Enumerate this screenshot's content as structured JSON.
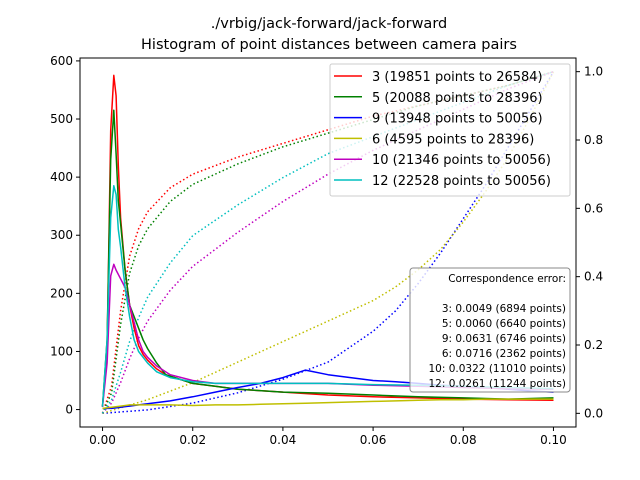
{
  "chart_data": {
    "type": "line",
    "title": "./vrbig/jack-forward/jack-forward",
    "subtitle": "Histogram of point distances between camera pairs",
    "xlabel": "",
    "ylabel": "",
    "xlim": [
      -0.005,
      0.105
    ],
    "ylim": [
      -30,
      605
    ],
    "y2lim": [
      -0.04,
      1.04
    ],
    "x_ticks": [
      0.0,
      0.02,
      0.04,
      0.06,
      0.08,
      0.1
    ],
    "x_tick_labels": [
      "0.00",
      "0.02",
      "0.04",
      "0.06",
      "0.08",
      "0.10"
    ],
    "y_ticks": [
      0,
      100,
      200,
      300,
      400,
      500,
      600
    ],
    "y_tick_labels": [
      "0",
      "100",
      "200",
      "300",
      "400",
      "500",
      "600"
    ],
    "y2_ticks": [
      0.0,
      0.2,
      0.4,
      0.6,
      0.8,
      1.0
    ],
    "y2_tick_labels": [
      "0.0",
      "0.2",
      "0.4",
      "0.6",
      "0.8",
      "1.0"
    ],
    "grid": false,
    "legend_position": "top-right",
    "series": [
      {
        "name": "3 (19851 points to 26584)",
        "color": "#ff0000",
        "x": [
          0.0,
          0.001,
          0.0018,
          0.0025,
          0.003,
          0.0035,
          0.004,
          0.005,
          0.006,
          0.007,
          0.008,
          0.009,
          0.01,
          0.012,
          0.014,
          0.016,
          0.02,
          0.025,
          0.03,
          0.04,
          0.05,
          0.06,
          0.07,
          0.08,
          0.09,
          0.1
        ],
        "values": [
          5,
          100,
          480,
          575,
          540,
          420,
          330,
          240,
          180,
          140,
          110,
          95,
          85,
          70,
          60,
          55,
          45,
          40,
          35,
          30,
          25,
          22,
          20,
          18,
          17,
          16
        ]
      },
      {
        "name": "5 (20088 points to 28396)",
        "color": "#008000",
        "x": [
          0.0,
          0.001,
          0.0018,
          0.0025,
          0.003,
          0.0035,
          0.004,
          0.005,
          0.006,
          0.007,
          0.008,
          0.009,
          0.01,
          0.012,
          0.014,
          0.016,
          0.02,
          0.025,
          0.03,
          0.04,
          0.05,
          0.06,
          0.07,
          0.08,
          0.09,
          0.1
        ],
        "values": [
          5,
          120,
          430,
          515,
          440,
          360,
          320,
          240,
          180,
          160,
          140,
          120,
          105,
          80,
          60,
          55,
          45,
          40,
          35,
          30,
          28,
          25,
          22,
          20,
          18,
          20
        ]
      },
      {
        "name": "9 (13948 points to 50056)",
        "color": "#0000ff",
        "x": [
          0.0,
          0.002,
          0.004,
          0.006,
          0.008,
          0.01,
          0.015,
          0.02,
          0.025,
          0.03,
          0.035,
          0.04,
          0.045,
          0.05,
          0.055,
          0.06,
          0.065,
          0.07,
          0.075,
          0.08,
          0.085,
          0.09,
          0.095,
          0.1
        ],
        "values": [
          2,
          2,
          4,
          6,
          8,
          10,
          15,
          22,
          30,
          38,
          45,
          55,
          68,
          60,
          55,
          50,
          48,
          45,
          42,
          40,
          38,
          35,
          32,
          30
        ]
      },
      {
        "name": "6 (4595 points to 28396)",
        "color": "#bfbf00",
        "x": [
          0.0,
          0.002,
          0.004,
          0.006,
          0.008,
          0.01,
          0.015,
          0.02,
          0.025,
          0.03,
          0.035,
          0.04,
          0.045,
          0.05,
          0.055,
          0.06,
          0.065,
          0.07,
          0.075,
          0.08,
          0.085,
          0.09,
          0.095,
          0.1
        ],
        "values": [
          2,
          4,
          6,
          8,
          8,
          8,
          8,
          7,
          8,
          8,
          9,
          10,
          11,
          12,
          13,
          14,
          15,
          16,
          17,
          17,
          18,
          18,
          18,
          18
        ]
      },
      {
        "name": "10 (21346 points to 50056)",
        "color": "#bf00bf",
        "x": [
          0.0,
          0.001,
          0.0018,
          0.0025,
          0.003,
          0.004,
          0.005,
          0.006,
          0.007,
          0.008,
          0.009,
          0.01,
          0.012,
          0.015,
          0.02,
          0.025,
          0.03,
          0.04,
          0.05,
          0.06,
          0.07,
          0.08,
          0.09,
          0.1
        ],
        "values": [
          5,
          80,
          230,
          250,
          240,
          225,
          210,
          180,
          150,
          120,
          100,
          90,
          75,
          60,
          50,
          45,
          45,
          45,
          45,
          42,
          40,
          38,
          36,
          35
        ]
      },
      {
        "name": "12 (22528 points to 50056)",
        "color": "#00bfbf",
        "x": [
          0.0,
          0.001,
          0.0018,
          0.0025,
          0.003,
          0.0035,
          0.004,
          0.005,
          0.006,
          0.007,
          0.008,
          0.009,
          0.01,
          0.012,
          0.015,
          0.02,
          0.025,
          0.03,
          0.04,
          0.05,
          0.06,
          0.07,
          0.08,
          0.09,
          0.1
        ],
        "values": [
          5,
          120,
          330,
          385,
          370,
          310,
          280,
          210,
          160,
          120,
          100,
          90,
          80,
          65,
          55,
          48,
          45,
          45,
          45,
          45,
          43,
          42,
          40,
          38,
          36
        ]
      }
    ],
    "cumulative_series": [
      {
        "color": "#ff0000",
        "x": [
          0.0,
          0.002,
          0.004,
          0.006,
          0.008,
          0.01,
          0.015,
          0.02,
          0.03,
          0.04,
          0.05,
          0.06,
          0.07,
          0.08,
          0.09,
          0.1
        ],
        "values": [
          0.0,
          0.08,
          0.3,
          0.46,
          0.54,
          0.59,
          0.66,
          0.7,
          0.75,
          0.79,
          0.83,
          0.87,
          0.9,
          0.93,
          0.96,
          1.0
        ]
      },
      {
        "color": "#008000",
        "x": [
          0.0,
          0.002,
          0.004,
          0.006,
          0.008,
          0.01,
          0.015,
          0.02,
          0.03,
          0.04,
          0.05,
          0.06,
          0.07,
          0.08,
          0.09,
          0.1
        ],
        "values": [
          0.0,
          0.06,
          0.26,
          0.41,
          0.49,
          0.54,
          0.62,
          0.67,
          0.73,
          0.78,
          0.82,
          0.86,
          0.9,
          0.93,
          0.96,
          1.0
        ]
      },
      {
        "color": "#0000ff",
        "x": [
          0.0,
          0.01,
          0.02,
          0.03,
          0.04,
          0.05,
          0.06,
          0.065,
          0.07,
          0.075,
          0.08,
          0.085,
          0.09,
          0.095,
          0.1
        ],
        "values": [
          0.0,
          0.01,
          0.03,
          0.06,
          0.1,
          0.15,
          0.24,
          0.3,
          0.38,
          0.47,
          0.57,
          0.67,
          0.78,
          0.89,
          1.0
        ]
      },
      {
        "color": "#bfbf00",
        "x": [
          0.0,
          0.01,
          0.02,
          0.03,
          0.04,
          0.05,
          0.06,
          0.065,
          0.07,
          0.075,
          0.08,
          0.085,
          0.09,
          0.095,
          0.1
        ],
        "values": [
          0.0,
          0.04,
          0.09,
          0.15,
          0.21,
          0.27,
          0.33,
          0.37,
          0.42,
          0.48,
          0.56,
          0.65,
          0.75,
          0.87,
          1.0
        ]
      },
      {
        "color": "#bf00bf",
        "x": [
          0.0,
          0.002,
          0.004,
          0.006,
          0.008,
          0.01,
          0.015,
          0.02,
          0.03,
          0.04,
          0.05,
          0.06,
          0.07,
          0.08,
          0.09,
          0.1
        ],
        "values": [
          0.0,
          0.03,
          0.09,
          0.16,
          0.22,
          0.27,
          0.36,
          0.43,
          0.53,
          0.62,
          0.7,
          0.77,
          0.83,
          0.89,
          0.95,
          1.0
        ]
      },
      {
        "color": "#00bfbf",
        "x": [
          0.0,
          0.002,
          0.004,
          0.006,
          0.008,
          0.01,
          0.015,
          0.02,
          0.03,
          0.04,
          0.05,
          0.06,
          0.07,
          0.08,
          0.09,
          0.1
        ],
        "values": [
          0.0,
          0.04,
          0.12,
          0.21,
          0.28,
          0.34,
          0.44,
          0.52,
          0.61,
          0.69,
          0.76,
          0.81,
          0.86,
          0.91,
          0.96,
          1.0
        ]
      }
    ],
    "annotation": {
      "title": "Correspondence error:",
      "lines": [
        "3: 0.0049 (6894 points)",
        "5: 0.0060 (6640 points)",
        "9: 0.0631 (6746 points)",
        "6: 0.0716 (2362 points)",
        "10: 0.0322 (11010 points)",
        "12: 0.0261 (11244 points)"
      ]
    }
  }
}
